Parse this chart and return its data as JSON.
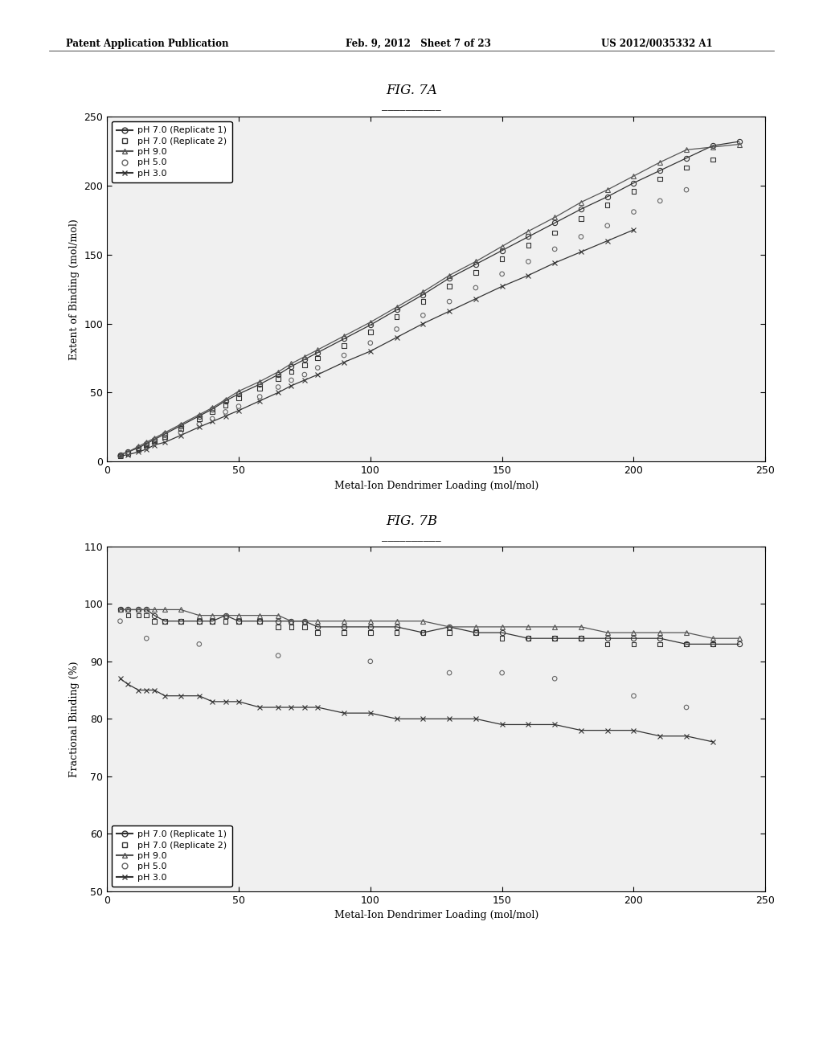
{
  "fig7a_title": "FIG. 7A",
  "fig7b_title": "FIG. 7B",
  "xlabel": "Metal-Ion Dendrimer Loading (mol/mol)",
  "fig7a_ylabel": "Extent of Binding (mol/mol)",
  "fig7b_ylabel": "Fractional Binding (%)",
  "fig7a_xlim": [
    0,
    250
  ],
  "fig7a_ylim": [
    0,
    250
  ],
  "fig7b_xlim": [
    0,
    250
  ],
  "fig7b_ylim": [
    50,
    110
  ],
  "fig7a_xticks": [
    0,
    50,
    100,
    150,
    200,
    250
  ],
  "fig7a_yticks": [
    0,
    50,
    100,
    150,
    200,
    250
  ],
  "fig7b_xticks": [
    0,
    50,
    100,
    150,
    200,
    250
  ],
  "fig7b_yticks": [
    50,
    60,
    70,
    80,
    90,
    100,
    110
  ],
  "header_left": "Patent Application Publication",
  "header_mid": "Feb. 9, 2012   Sheet 7 of 23",
  "header_right": "US 2012/0035332 A1",
  "background_color": "#ffffff",
  "plot_bg_color": "#f0f0f0",
  "fig7a_series": {
    "pH70_rep1": {
      "x": [
        5,
        8,
        12,
        15,
        18,
        22,
        28,
        35,
        40,
        45,
        50,
        58,
        65,
        70,
        75,
        80,
        90,
        100,
        110,
        120,
        130,
        140,
        150,
        160,
        170,
        180,
        190,
        200,
        210,
        220,
        230,
        240
      ],
      "y": [
        5,
        7,
        10,
        13,
        16,
        20,
        26,
        33,
        38,
        44,
        49,
        56,
        63,
        69,
        74,
        79,
        89,
        99,
        110,
        121,
        133,
        143,
        153,
        163,
        173,
        183,
        192,
        202,
        211,
        220,
        229,
        232
      ],
      "marker": "o",
      "has_line": true,
      "linestyle": "-"
    },
    "pH70_rep2": {
      "x": [
        5,
        8,
        12,
        15,
        18,
        22,
        28,
        35,
        40,
        45,
        50,
        58,
        65,
        70,
        75,
        80,
        90,
        100,
        110,
        120,
        130,
        140,
        150,
        160,
        170,
        180,
        190,
        200,
        210,
        220,
        230
      ],
      "y": [
        4,
        6,
        9,
        12,
        15,
        18,
        24,
        31,
        36,
        41,
        46,
        53,
        60,
        65,
        70,
        75,
        84,
        94,
        105,
        116,
        127,
        137,
        147,
        157,
        166,
        176,
        186,
        196,
        205,
        213,
        219
      ],
      "marker": "s",
      "has_line": false,
      "linestyle": ""
    },
    "pH90": {
      "x": [
        5,
        8,
        12,
        15,
        18,
        22,
        28,
        35,
        40,
        45,
        50,
        58,
        65,
        70,
        75,
        80,
        90,
        100,
        110,
        120,
        130,
        140,
        150,
        160,
        170,
        180,
        190,
        200,
        210,
        220,
        230,
        240
      ],
      "y": [
        5,
        7,
        11,
        14,
        17,
        21,
        27,
        34,
        39,
        45,
        51,
        58,
        65,
        71,
        76,
        81,
        91,
        101,
        112,
        123,
        135,
        145,
        156,
        167,
        177,
        188,
        197,
        207,
        217,
        226,
        228,
        230
      ],
      "marker": "^",
      "has_line": true,
      "linestyle": "-"
    },
    "pH50": {
      "x": [
        5,
        8,
        12,
        15,
        18,
        22,
        28,
        35,
        40,
        45,
        50,
        58,
        65,
        70,
        75,
        80,
        90,
        100,
        110,
        120,
        130,
        140,
        150,
        160,
        170,
        180,
        190,
        200,
        210,
        220
      ],
      "y": [
        4,
        6,
        8,
        10,
        13,
        16,
        21,
        27,
        31,
        36,
        40,
        47,
        54,
        59,
        63,
        68,
        77,
        86,
        96,
        106,
        116,
        126,
        136,
        145,
        154,
        163,
        171,
        181,
        189,
        197
      ],
      "marker": "o",
      "has_line": false,
      "linestyle": ""
    },
    "pH30": {
      "x": [
        5,
        8,
        12,
        15,
        18,
        22,
        28,
        35,
        40,
        45,
        50,
        58,
        65,
        70,
        75,
        80,
        90,
        100,
        110,
        120,
        130,
        140,
        150,
        160,
        170,
        180,
        190,
        200
      ],
      "y": [
        4,
        5,
        7,
        9,
        12,
        14,
        19,
        25,
        29,
        33,
        37,
        44,
        50,
        55,
        59,
        63,
        72,
        80,
        90,
        100,
        109,
        118,
        127,
        135,
        144,
        152,
        160,
        168
      ],
      "marker": "x",
      "has_line": true,
      "linestyle": "-"
    }
  },
  "fig7b_series": {
    "pH70_rep1": {
      "x": [
        5,
        8,
        12,
        15,
        18,
        22,
        28,
        35,
        40,
        45,
        50,
        58,
        65,
        70,
        75,
        80,
        90,
        100,
        110,
        120,
        130,
        140,
        150,
        160,
        170,
        180,
        190,
        200,
        210,
        220,
        230,
        240
      ],
      "y": [
        99,
        99,
        99,
        99,
        98,
        97,
        97,
        97,
        97,
        98,
        97,
        97,
        97,
        97,
        97,
        96,
        96,
        96,
        96,
        95,
        96,
        95,
        95,
        94,
        94,
        94,
        94,
        94,
        94,
        93,
        93,
        93
      ],
      "marker": "o",
      "has_line": true,
      "linestyle": "-"
    },
    "pH70_rep2": {
      "x": [
        5,
        8,
        12,
        15,
        18,
        22,
        28,
        35,
        40,
        45,
        50,
        58,
        65,
        70,
        75,
        80,
        90,
        100,
        110,
        120,
        130,
        140,
        150,
        160,
        170,
        180,
        190,
        200,
        210,
        220,
        230
      ],
      "y": [
        99,
        98,
        98,
        98,
        97,
        97,
        97,
        97,
        97,
        97,
        97,
        97,
        96,
        96,
        96,
        95,
        95,
        95,
        95,
        95,
        95,
        95,
        94,
        94,
        94,
        94,
        93,
        93,
        93,
        93,
        93
      ],
      "marker": "s",
      "has_line": false,
      "linestyle": ""
    },
    "pH90": {
      "x": [
        5,
        8,
        12,
        15,
        18,
        22,
        28,
        35,
        40,
        45,
        50,
        58,
        65,
        70,
        75,
        80,
        90,
        100,
        110,
        120,
        130,
        140,
        150,
        160,
        170,
        180,
        190,
        200,
        210,
        220,
        230,
        240
      ],
      "y": [
        99,
        99,
        99,
        99,
        99,
        99,
        99,
        98,
        98,
        98,
        98,
        98,
        98,
        97,
        97,
        97,
        97,
        97,
        97,
        97,
        96,
        96,
        96,
        96,
        96,
        96,
        95,
        95,
        95,
        95,
        94,
        94
      ],
      "marker": "^",
      "has_line": true,
      "linestyle": "-"
    },
    "pH50": {
      "x": [
        5,
        15,
        35,
        65,
        100,
        130,
        150,
        170,
        200,
        220
      ],
      "y": [
        97,
        94,
        93,
        91,
        90,
        88,
        88,
        87,
        84,
        82
      ],
      "marker": "o",
      "has_line": false,
      "linestyle": ""
    },
    "pH30": {
      "x": [
        5,
        8,
        12,
        15,
        18,
        22,
        28,
        35,
        40,
        45,
        50,
        58,
        65,
        70,
        75,
        80,
        90,
        100,
        110,
        120,
        130,
        140,
        150,
        160,
        170,
        180,
        190,
        200,
        210,
        220,
        230
      ],
      "y": [
        87,
        86,
        85,
        85,
        85,
        84,
        84,
        84,
        83,
        83,
        83,
        82,
        82,
        82,
        82,
        82,
        81,
        81,
        80,
        80,
        80,
        80,
        79,
        79,
        79,
        78,
        78,
        78,
        77,
        77,
        76
      ],
      "marker": "x",
      "has_line": true,
      "linestyle": "-"
    }
  }
}
